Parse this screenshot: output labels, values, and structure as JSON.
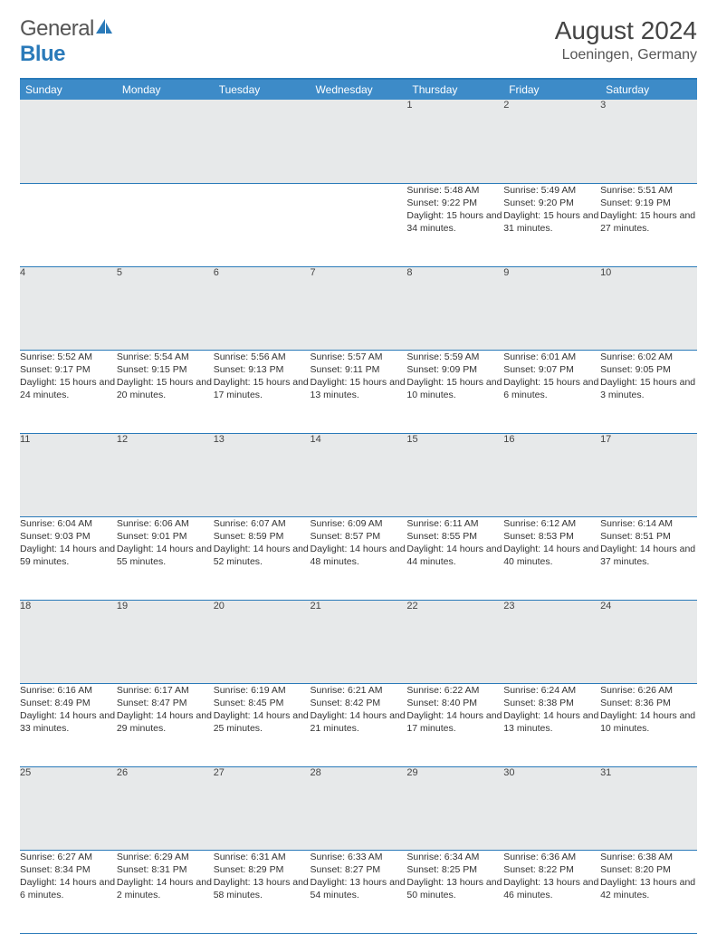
{
  "logo": {
    "part1": "General",
    "part2": "Blue"
  },
  "title": "August 2024",
  "location": "Loeningen, Germany",
  "colors": {
    "header_bg": "#3d8bc8",
    "border": "#2a7ab9",
    "daynum_bg": "#e7e9ea",
    "text": "#333333",
    "logo_blue": "#2a7ab9"
  },
  "weekdays": [
    "Sunday",
    "Monday",
    "Tuesday",
    "Wednesday",
    "Thursday",
    "Friday",
    "Saturday"
  ],
  "weeks": [
    {
      "nums": [
        "",
        "",
        "",
        "",
        "1",
        "2",
        "3"
      ],
      "cells": [
        null,
        null,
        null,
        null,
        {
          "sr": "Sunrise: 5:48 AM",
          "ss": "Sunset: 9:22 PM",
          "dl": "Daylight: 15 hours and 34 minutes."
        },
        {
          "sr": "Sunrise: 5:49 AM",
          "ss": "Sunset: 9:20 PM",
          "dl": "Daylight: 15 hours and 31 minutes."
        },
        {
          "sr": "Sunrise: 5:51 AM",
          "ss": "Sunset: 9:19 PM",
          "dl": "Daylight: 15 hours and 27 minutes."
        }
      ]
    },
    {
      "nums": [
        "4",
        "5",
        "6",
        "7",
        "8",
        "9",
        "10"
      ],
      "cells": [
        {
          "sr": "Sunrise: 5:52 AM",
          "ss": "Sunset: 9:17 PM",
          "dl": "Daylight: 15 hours and 24 minutes."
        },
        {
          "sr": "Sunrise: 5:54 AM",
          "ss": "Sunset: 9:15 PM",
          "dl": "Daylight: 15 hours and 20 minutes."
        },
        {
          "sr": "Sunrise: 5:56 AM",
          "ss": "Sunset: 9:13 PM",
          "dl": "Daylight: 15 hours and 17 minutes."
        },
        {
          "sr": "Sunrise: 5:57 AM",
          "ss": "Sunset: 9:11 PM",
          "dl": "Daylight: 15 hours and 13 minutes."
        },
        {
          "sr": "Sunrise: 5:59 AM",
          "ss": "Sunset: 9:09 PM",
          "dl": "Daylight: 15 hours and 10 minutes."
        },
        {
          "sr": "Sunrise: 6:01 AM",
          "ss": "Sunset: 9:07 PM",
          "dl": "Daylight: 15 hours and 6 minutes."
        },
        {
          "sr": "Sunrise: 6:02 AM",
          "ss": "Sunset: 9:05 PM",
          "dl": "Daylight: 15 hours and 3 minutes."
        }
      ]
    },
    {
      "nums": [
        "11",
        "12",
        "13",
        "14",
        "15",
        "16",
        "17"
      ],
      "cells": [
        {
          "sr": "Sunrise: 6:04 AM",
          "ss": "Sunset: 9:03 PM",
          "dl": "Daylight: 14 hours and 59 minutes."
        },
        {
          "sr": "Sunrise: 6:06 AM",
          "ss": "Sunset: 9:01 PM",
          "dl": "Daylight: 14 hours and 55 minutes."
        },
        {
          "sr": "Sunrise: 6:07 AM",
          "ss": "Sunset: 8:59 PM",
          "dl": "Daylight: 14 hours and 52 minutes."
        },
        {
          "sr": "Sunrise: 6:09 AM",
          "ss": "Sunset: 8:57 PM",
          "dl": "Daylight: 14 hours and 48 minutes."
        },
        {
          "sr": "Sunrise: 6:11 AM",
          "ss": "Sunset: 8:55 PM",
          "dl": "Daylight: 14 hours and 44 minutes."
        },
        {
          "sr": "Sunrise: 6:12 AM",
          "ss": "Sunset: 8:53 PM",
          "dl": "Daylight: 14 hours and 40 minutes."
        },
        {
          "sr": "Sunrise: 6:14 AM",
          "ss": "Sunset: 8:51 PM",
          "dl": "Daylight: 14 hours and 37 minutes."
        }
      ]
    },
    {
      "nums": [
        "18",
        "19",
        "20",
        "21",
        "22",
        "23",
        "24"
      ],
      "cells": [
        {
          "sr": "Sunrise: 6:16 AM",
          "ss": "Sunset: 8:49 PM",
          "dl": "Daylight: 14 hours and 33 minutes."
        },
        {
          "sr": "Sunrise: 6:17 AM",
          "ss": "Sunset: 8:47 PM",
          "dl": "Daylight: 14 hours and 29 minutes."
        },
        {
          "sr": "Sunrise: 6:19 AM",
          "ss": "Sunset: 8:45 PM",
          "dl": "Daylight: 14 hours and 25 minutes."
        },
        {
          "sr": "Sunrise: 6:21 AM",
          "ss": "Sunset: 8:42 PM",
          "dl": "Daylight: 14 hours and 21 minutes."
        },
        {
          "sr": "Sunrise: 6:22 AM",
          "ss": "Sunset: 8:40 PM",
          "dl": "Daylight: 14 hours and 17 minutes."
        },
        {
          "sr": "Sunrise: 6:24 AM",
          "ss": "Sunset: 8:38 PM",
          "dl": "Daylight: 14 hours and 13 minutes."
        },
        {
          "sr": "Sunrise: 6:26 AM",
          "ss": "Sunset: 8:36 PM",
          "dl": "Daylight: 14 hours and 10 minutes."
        }
      ]
    },
    {
      "nums": [
        "25",
        "26",
        "27",
        "28",
        "29",
        "30",
        "31"
      ],
      "cells": [
        {
          "sr": "Sunrise: 6:27 AM",
          "ss": "Sunset: 8:34 PM",
          "dl": "Daylight: 14 hours and 6 minutes."
        },
        {
          "sr": "Sunrise: 6:29 AM",
          "ss": "Sunset: 8:31 PM",
          "dl": "Daylight: 14 hours and 2 minutes."
        },
        {
          "sr": "Sunrise: 6:31 AM",
          "ss": "Sunset: 8:29 PM",
          "dl": "Daylight: 13 hours and 58 minutes."
        },
        {
          "sr": "Sunrise: 6:33 AM",
          "ss": "Sunset: 8:27 PM",
          "dl": "Daylight: 13 hours and 54 minutes."
        },
        {
          "sr": "Sunrise: 6:34 AM",
          "ss": "Sunset: 8:25 PM",
          "dl": "Daylight: 13 hours and 50 minutes."
        },
        {
          "sr": "Sunrise: 6:36 AM",
          "ss": "Sunset: 8:22 PM",
          "dl": "Daylight: 13 hours and 46 minutes."
        },
        {
          "sr": "Sunrise: 6:38 AM",
          "ss": "Sunset: 8:20 PM",
          "dl": "Daylight: 13 hours and 42 minutes."
        }
      ]
    }
  ]
}
